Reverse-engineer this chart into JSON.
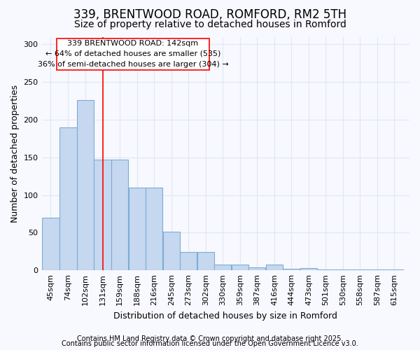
{
  "title": "339, BRENTWOOD ROAD, ROMFORD, RM2 5TH",
  "subtitle": "Size of property relative to detached houses in Romford",
  "xlabel": "Distribution of detached houses by size in Romford",
  "ylabel": "Number of detached properties",
  "footnote1": "Contains HM Land Registry data © Crown copyright and database right 2025.",
  "footnote2": "Contains public sector information licensed under the Open Government Licence v3.0.",
  "bin_labels": [
    "45sqm",
    "74sqm",
    "102sqm",
    "131sqm",
    "159sqm",
    "188sqm",
    "216sqm",
    "245sqm",
    "273sqm",
    "302sqm",
    "330sqm",
    "359sqm",
    "387sqm",
    "416sqm",
    "444sqm",
    "473sqm",
    "501sqm",
    "530sqm",
    "558sqm",
    "587sqm",
    "615sqm"
  ],
  "bin_centers": [
    45,
    74,
    102,
    131,
    159,
    188,
    216,
    245,
    273,
    302,
    330,
    359,
    387,
    416,
    444,
    473,
    501,
    530,
    558,
    587,
    615
  ],
  "bar_heights": [
    70,
    190,
    226,
    147,
    147,
    110,
    110,
    51,
    24,
    24,
    8,
    8,
    4,
    8,
    2,
    3,
    1,
    1,
    1,
    1,
    1
  ],
  "bar_color": "#c5d8f0",
  "bar_edge_color": "#7badd4",
  "red_line_x": 131,
  "annotation_box_text1": "339 BRENTWOOD ROAD: 142sqm",
  "annotation_box_text2": "← 64% of detached houses are smaller (535)",
  "annotation_box_text3": "36% of semi-detached houses are larger (304) →",
  "ylim": [
    0,
    310
  ],
  "yticks": [
    0,
    50,
    100,
    150,
    200,
    250,
    300
  ],
  "background_color": "#f8f8ff",
  "plot_bg_color": "#f8f8ff",
  "grid_color": "#e0e8f0",
  "title_fontsize": 12,
  "subtitle_fontsize": 10,
  "axis_label_fontsize": 9,
  "tick_fontsize": 8,
  "annotation_fontsize": 8,
  "footnote_fontsize": 7
}
